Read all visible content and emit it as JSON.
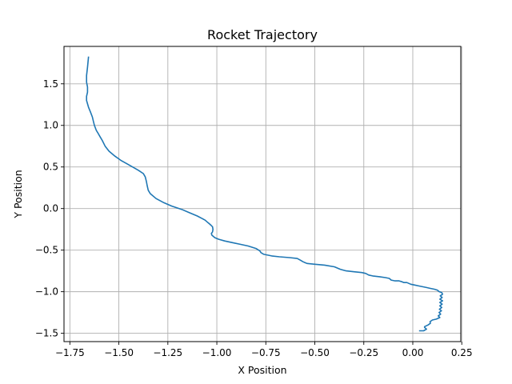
{
  "chart_data": {
    "type": "line",
    "title": "Rocket Trajectory",
    "xlabel": "X Position",
    "ylabel": "Y Position",
    "xlim": [
      -1.78,
      0.245
    ],
    "ylim": [
      -1.6,
      1.95
    ],
    "xticks": [
      -1.75,
      -1.5,
      -1.25,
      -1.0,
      -0.75,
      -0.5,
      -0.25,
      0.0,
      0.25
    ],
    "xtick_labels": [
      "−1.75",
      "−1.50",
      "−1.25",
      "−1.00",
      "−0.75",
      "−0.50",
      "−0.25",
      "0.00",
      "0.25"
    ],
    "yticks": [
      -1.5,
      -1.0,
      -0.5,
      0.0,
      0.5,
      1.0,
      1.5
    ],
    "ytick_labels": [
      "−1.5",
      "−1.0",
      "−0.5",
      "0.0",
      "0.5",
      "1.0",
      "1.5"
    ],
    "grid": true,
    "series": [
      {
        "color": "#1f77b4",
        "x": [
          -1.655,
          -1.66,
          -1.665,
          -1.665,
          -1.66,
          -1.66,
          -1.665,
          -1.665,
          -1.655,
          -1.645,
          -1.635,
          -1.63,
          -1.625,
          -1.615,
          -1.605,
          -1.595,
          -1.585,
          -1.57,
          -1.55,
          -1.52,
          -1.49,
          -1.46,
          -1.43,
          -1.4,
          -1.375,
          -1.365,
          -1.36,
          -1.355,
          -1.35,
          -1.34,
          -1.31,
          -1.27,
          -1.23,
          -1.18,
          -1.14,
          -1.1,
          -1.075,
          -1.06,
          -1.05,
          -1.04,
          -1.03,
          -1.022,
          -1.02,
          -1.022,
          -1.028,
          -1.025,
          -1.01,
          -0.99,
          -0.96,
          -0.92,
          -0.88,
          -0.84,
          -0.8,
          -0.78,
          -0.775,
          -0.76,
          -0.72,
          -0.68,
          -0.63,
          -0.59,
          -0.575,
          -0.56,
          -0.54,
          -0.5,
          -0.45,
          -0.4,
          -0.37,
          -0.355,
          -0.34,
          -0.3,
          -0.26,
          -0.24,
          -0.225,
          -0.205,
          -0.17,
          -0.14,
          -0.12,
          -0.11,
          -0.09,
          -0.07,
          -0.055,
          -0.045,
          -0.03,
          -0.01,
          0.01,
          0.03,
          0.05,
          0.07,
          0.09,
          0.11,
          0.125,
          0.135,
          0.148,
          0.152,
          0.14,
          0.15,
          0.138,
          0.152,
          0.138,
          0.15,
          0.138,
          0.148,
          0.136,
          0.146,
          0.134,
          0.142,
          0.13,
          0.138,
          0.12,
          0.1,
          0.088,
          0.09,
          0.078,
          0.06,
          0.06,
          0.07,
          0.055,
          0.035
        ],
        "y": [
          1.82,
          1.7,
          1.6,
          1.52,
          1.46,
          1.4,
          1.35,
          1.3,
          1.22,
          1.16,
          1.1,
          1.05,
          1.0,
          0.94,
          0.9,
          0.86,
          0.82,
          0.75,
          0.69,
          0.63,
          0.58,
          0.54,
          0.5,
          0.46,
          0.42,
          0.38,
          0.33,
          0.27,
          0.22,
          0.18,
          0.12,
          0.07,
          0.03,
          -0.01,
          -0.05,
          -0.09,
          -0.12,
          -0.14,
          -0.16,
          -0.18,
          -0.2,
          -0.22,
          -0.25,
          -0.28,
          -0.3,
          -0.32,
          -0.35,
          -0.37,
          -0.39,
          -0.41,
          -0.43,
          -0.45,
          -0.48,
          -0.51,
          -0.53,
          -0.55,
          -0.57,
          -0.58,
          -0.59,
          -0.6,
          -0.62,
          -0.64,
          -0.66,
          -0.67,
          -0.68,
          -0.7,
          -0.73,
          -0.74,
          -0.75,
          -0.76,
          -0.77,
          -0.78,
          -0.8,
          -0.81,
          -0.82,
          -0.83,
          -0.84,
          -0.86,
          -0.87,
          -0.87,
          -0.88,
          -0.89,
          -0.89,
          -0.91,
          -0.92,
          -0.93,
          -0.94,
          -0.95,
          -0.96,
          -0.97,
          -0.98,
          -1.0,
          -1.01,
          -1.03,
          -1.05,
          -1.07,
          -1.09,
          -1.11,
          -1.13,
          -1.15,
          -1.17,
          -1.19,
          -1.21,
          -1.23,
          -1.25,
          -1.27,
          -1.29,
          -1.31,
          -1.33,
          -1.34,
          -1.36,
          -1.38,
          -1.4,
          -1.42,
          -1.43,
          -1.45,
          -1.47,
          -1.47
        ]
      }
    ]
  }
}
